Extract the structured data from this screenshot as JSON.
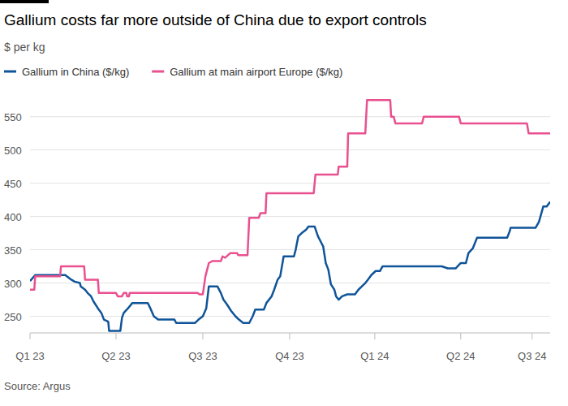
{
  "chart_data": {
    "type": "line",
    "title": "Gallium costs far more outside of China due to export controls",
    "subtitle": "$ per kg",
    "source": "Source: Argus",
    "legend": "top-left",
    "grid": true,
    "xlim": [
      0,
      6.05
    ],
    "xticks": [
      {
        "value": 0,
        "label": "Q1 23"
      },
      {
        "value": 1.0,
        "label": "Q2 23"
      },
      {
        "value": 2.01,
        "label": "Q3 23"
      },
      {
        "value": 3.02,
        "label": "Q4 23"
      },
      {
        "value": 4.01,
        "label": "Q1 24"
      },
      {
        "value": 5.01,
        "label": "Q2 24"
      },
      {
        "value": 5.84,
        "label": "Q3 24"
      }
    ],
    "ylim": [
      225,
      585
    ],
    "yticks": [
      250,
      300,
      350,
      400,
      450,
      500,
      550
    ],
    "series": [
      {
        "name": "Gallium in China ($/kg)",
        "color": "#0f5499",
        "x": [
          0.0,
          0.06,
          0.41,
          0.48,
          0.52,
          0.58,
          0.59,
          0.64,
          0.67,
          0.71,
          0.74,
          0.76,
          0.8,
          0.83,
          0.86,
          0.91,
          0.92,
          1.05,
          1.07,
          1.09,
          1.14,
          1.19,
          1.37,
          1.4,
          1.44,
          1.49,
          1.68,
          1.7,
          1.92,
          1.96,
          2.01,
          2.05,
          2.08,
          2.18,
          2.22,
          2.25,
          2.29,
          2.34,
          2.39,
          2.43,
          2.48,
          2.55,
          2.59,
          2.62,
          2.72,
          2.75,
          2.81,
          2.84,
          2.88,
          2.91,
          2.95,
          3.07,
          3.09,
          3.12,
          3.16,
          3.21,
          3.24,
          3.31,
          3.35,
          3.41,
          3.44,
          3.47,
          3.5,
          3.54,
          3.56,
          3.59,
          3.63,
          3.69,
          3.78,
          3.82,
          3.86,
          3.9,
          3.93,
          3.97,
          4.02,
          4.07,
          4.1,
          4.79,
          4.86,
          4.95,
          5.01,
          5.07,
          5.1,
          5.15,
          5.2,
          5.55,
          5.58,
          5.59,
          5.88,
          5.92,
          5.97,
          6.01,
          6.05
        ],
        "values": [
          303,
          312,
          312,
          305,
          302,
          300,
          295,
          290,
          285,
          280,
          272,
          268,
          260,
          255,
          245,
          242,
          228,
          228,
          248,
          255,
          262,
          270,
          270,
          262,
          250,
          245,
          245,
          240,
          240,
          245,
          250,
          262,
          295,
          295,
          285,
          275,
          268,
          258,
          250,
          245,
          240,
          240,
          250,
          260,
          260,
          270,
          280,
          290,
          305,
          310,
          340,
          340,
          350,
          370,
          375,
          380,
          385,
          385,
          370,
          355,
          330,
          320,
          298,
          290,
          280,
          275,
          280,
          283,
          283,
          290,
          295,
          300,
          305,
          312,
          318,
          318,
          325,
          325,
          322,
          322,
          330,
          330,
          345,
          352,
          368,
          368,
          378,
          383,
          383,
          392,
          415,
          415,
          422
        ]
      },
      {
        "name": "Gallium at main airport Europe ($/kg)",
        "color": "#e9508f",
        "x": [
          0.0,
          0.05,
          0.06,
          0.35,
          0.36,
          0.63,
          0.64,
          0.79,
          0.8,
          1.0,
          1.02,
          1.07,
          1.09,
          1.12,
          1.13,
          1.15,
          1.16,
          1.95,
          1.97,
          2.01,
          2.04,
          2.08,
          2.12,
          2.22,
          2.24,
          2.27,
          2.33,
          2.41,
          2.42,
          2.53,
          2.55,
          2.66,
          2.68,
          2.74,
          2.75,
          3.3,
          3.32,
          3.58,
          3.59,
          3.69,
          3.7,
          3.9,
          3.92,
          4.19,
          4.2,
          4.23,
          4.25,
          4.56,
          4.58,
          4.99,
          5.01,
          5.78,
          5.8,
          6.05
        ],
        "values": [
          290,
          290,
          310,
          310,
          325,
          325,
          305,
          305,
          285,
          285,
          280,
          280,
          285,
          285,
          280,
          280,
          285,
          285,
          283,
          283,
          310,
          330,
          333,
          333,
          340,
          338,
          345,
          345,
          342,
          342,
          398,
          398,
          405,
          405,
          435,
          435,
          463,
          463,
          475,
          475,
          525,
          525,
          575,
          575,
          550,
          550,
          540,
          540,
          550,
          550,
          540,
          540,
          525,
          525
        ]
      }
    ]
  }
}
